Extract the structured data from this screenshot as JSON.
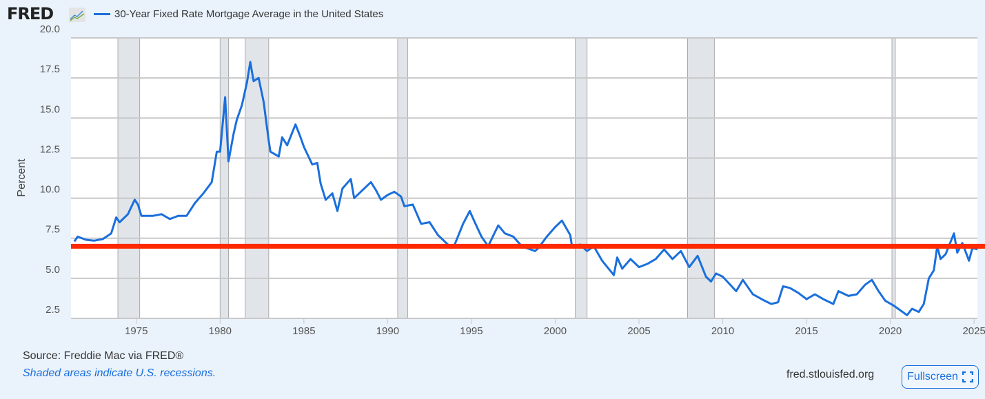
{
  "header": {
    "logo_text": "FRED",
    "legend_label": "30-Year Fixed Rate Mortgage Average in the United States"
  },
  "footer": {
    "source": "Source: Freddie Mac via FRED®",
    "recession_note": "Shaded areas indicate U.S. recessions.",
    "site": "fred.stlouisfed.org",
    "fullscreen_label": "Fullscreen"
  },
  "colors": {
    "series": "#1a6fdc",
    "reference_line": "#ff2a00",
    "recession": "#e1e5ea",
    "background": "#eaf2fb"
  },
  "chart_data": {
    "type": "line",
    "title": "",
    "xlabel": "",
    "ylabel": "Percent",
    "xlim": [
      1971.1,
      2025.2
    ],
    "ylim": [
      2.5,
      20.0
    ],
    "grid": true,
    "legend": "top-left",
    "y_ticks": [
      "2.5",
      "5.0",
      "7.5",
      "10.0",
      "12.5",
      "15.0",
      "17.5",
      "20.0"
    ],
    "x_ticks": [
      "1975",
      "1980",
      "1985",
      "1990",
      "1995",
      "2000",
      "2005",
      "2010",
      "2015",
      "2020",
      "2025"
    ],
    "recessions": [
      [
        1973.9,
        1975.2
      ],
      [
        1980.0,
        1980.5
      ],
      [
        1981.5,
        1982.9
      ],
      [
        1990.6,
        1991.2
      ],
      [
        2001.2,
        2001.9
      ],
      [
        2007.9,
        2009.5
      ],
      [
        2020.1,
        2020.3
      ]
    ],
    "reference_line": {
      "y": 7.0
    },
    "series": [
      {
        "name": "30-Year Fixed Rate Mortgage Average in the United States",
        "points": [
          [
            1971.3,
            7.3
          ],
          [
            1971.5,
            7.6
          ],
          [
            1972,
            7.4
          ],
          [
            1972.5,
            7.35
          ],
          [
            1973,
            7.45
          ],
          [
            1973.5,
            7.8
          ],
          [
            1973.8,
            8.8
          ],
          [
            1974,
            8.5
          ],
          [
            1974.5,
            9.0
          ],
          [
            1974.9,
            9.9
          ],
          [
            1975.1,
            9.6
          ],
          [
            1975.3,
            8.9
          ],
          [
            1976,
            8.9
          ],
          [
            1976.5,
            9.0
          ],
          [
            1977,
            8.7
          ],
          [
            1977.5,
            8.9
          ],
          [
            1978,
            8.9
          ],
          [
            1978.5,
            9.7
          ],
          [
            1979,
            10.3
          ],
          [
            1979.5,
            11.0
          ],
          [
            1979.8,
            12.9
          ],
          [
            1980.0,
            12.9
          ],
          [
            1980.3,
            16.3
          ],
          [
            1980.5,
            12.3
          ],
          [
            1980.8,
            14.0
          ],
          [
            1981,
            14.9
          ],
          [
            1981.3,
            15.8
          ],
          [
            1981.6,
            17.2
          ],
          [
            1981.8,
            18.5
          ],
          [
            1982,
            17.3
          ],
          [
            1982.3,
            17.5
          ],
          [
            1982.6,
            16.0
          ],
          [
            1982.9,
            13.6
          ],
          [
            1983,
            12.9
          ],
          [
            1983.5,
            12.6
          ],
          [
            1983.7,
            13.8
          ],
          [
            1984,
            13.3
          ],
          [
            1984.5,
            14.6
          ],
          [
            1984.8,
            13.8
          ],
          [
            1985,
            13.2
          ],
          [
            1985.5,
            12.1
          ],
          [
            1985.8,
            12.2
          ],
          [
            1986,
            10.9
          ],
          [
            1986.3,
            9.9
          ],
          [
            1986.7,
            10.3
          ],
          [
            1987,
            9.2
          ],
          [
            1987.3,
            10.6
          ],
          [
            1987.8,
            11.2
          ],
          [
            1988,
            10.0
          ],
          [
            1988.5,
            10.5
          ],
          [
            1989,
            11.0
          ],
          [
            1989.3,
            10.5
          ],
          [
            1989.6,
            9.9
          ],
          [
            1990,
            10.2
          ],
          [
            1990.4,
            10.4
          ],
          [
            1990.8,
            10.1
          ],
          [
            1991,
            9.5
          ],
          [
            1991.5,
            9.6
          ],
          [
            1992,
            8.4
          ],
          [
            1992.5,
            8.5
          ],
          [
            1993,
            7.7
          ],
          [
            1993.8,
            6.9
          ],
          [
            1994,
            7.1
          ],
          [
            1994.5,
            8.4
          ],
          [
            1994.9,
            9.2
          ],
          [
            1995.2,
            8.5
          ],
          [
            1995.6,
            7.6
          ],
          [
            1996,
            7.0
          ],
          [
            1996.6,
            8.3
          ],
          [
            1997,
            7.8
          ],
          [
            1997.5,
            7.6
          ],
          [
            1998,
            7.0
          ],
          [
            1998.8,
            6.7
          ],
          [
            1999,
            6.9
          ],
          [
            1999.5,
            7.6
          ],
          [
            2000,
            8.2
          ],
          [
            2000.4,
            8.6
          ],
          [
            2000.9,
            7.7
          ],
          [
            2001,
            7.0
          ],
          [
            2001.5,
            7.1
          ],
          [
            2001.9,
            6.7
          ],
          [
            2002.3,
            7.0
          ],
          [
            2002.8,
            6.1
          ],
          [
            2003.5,
            5.2
          ],
          [
            2003.7,
            6.3
          ],
          [
            2004,
            5.6
          ],
          [
            2004.5,
            6.2
          ],
          [
            2005,
            5.7
          ],
          [
            2005.5,
            5.9
          ],
          [
            2006,
            6.2
          ],
          [
            2006.5,
            6.8
          ],
          [
            2007,
            6.2
          ],
          [
            2007.5,
            6.7
          ],
          [
            2008,
            5.7
          ],
          [
            2008.5,
            6.4
          ],
          [
            2009,
            5.1
          ],
          [
            2009.3,
            4.8
          ],
          [
            2009.6,
            5.3
          ],
          [
            2010,
            5.1
          ],
          [
            2010.8,
            4.2
          ],
          [
            2011.2,
            4.9
          ],
          [
            2011.8,
            4.0
          ],
          [
            2012.5,
            3.6
          ],
          [
            2012.9,
            3.4
          ],
          [
            2013.3,
            3.5
          ],
          [
            2013.6,
            4.5
          ],
          [
            2014,
            4.4
          ],
          [
            2014.5,
            4.1
          ],
          [
            2015,
            3.7
          ],
          [
            2015.5,
            4.0
          ],
          [
            2016,
            3.7
          ],
          [
            2016.6,
            3.4
          ],
          [
            2016.9,
            4.2
          ],
          [
            2017.5,
            3.9
          ],
          [
            2018,
            4.0
          ],
          [
            2018.5,
            4.6
          ],
          [
            2018.9,
            4.9
          ],
          [
            2019.3,
            4.2
          ],
          [
            2019.7,
            3.6
          ],
          [
            2020.2,
            3.3
          ],
          [
            2020.6,
            3.0
          ],
          [
            2021.0,
            2.7
          ],
          [
            2021.3,
            3.1
          ],
          [
            2021.7,
            2.9
          ],
          [
            2022,
            3.4
          ],
          [
            2022.3,
            5.0
          ],
          [
            2022.6,
            5.5
          ],
          [
            2022.8,
            7.0
          ],
          [
            2023,
            6.2
          ],
          [
            2023.3,
            6.5
          ],
          [
            2023.8,
            7.8
          ],
          [
            2024,
            6.6
          ],
          [
            2024.3,
            7.2
          ],
          [
            2024.7,
            6.1
          ],
          [
            2024.9,
            6.9
          ],
          [
            2025.2,
            6.8
          ]
        ]
      }
    ]
  }
}
